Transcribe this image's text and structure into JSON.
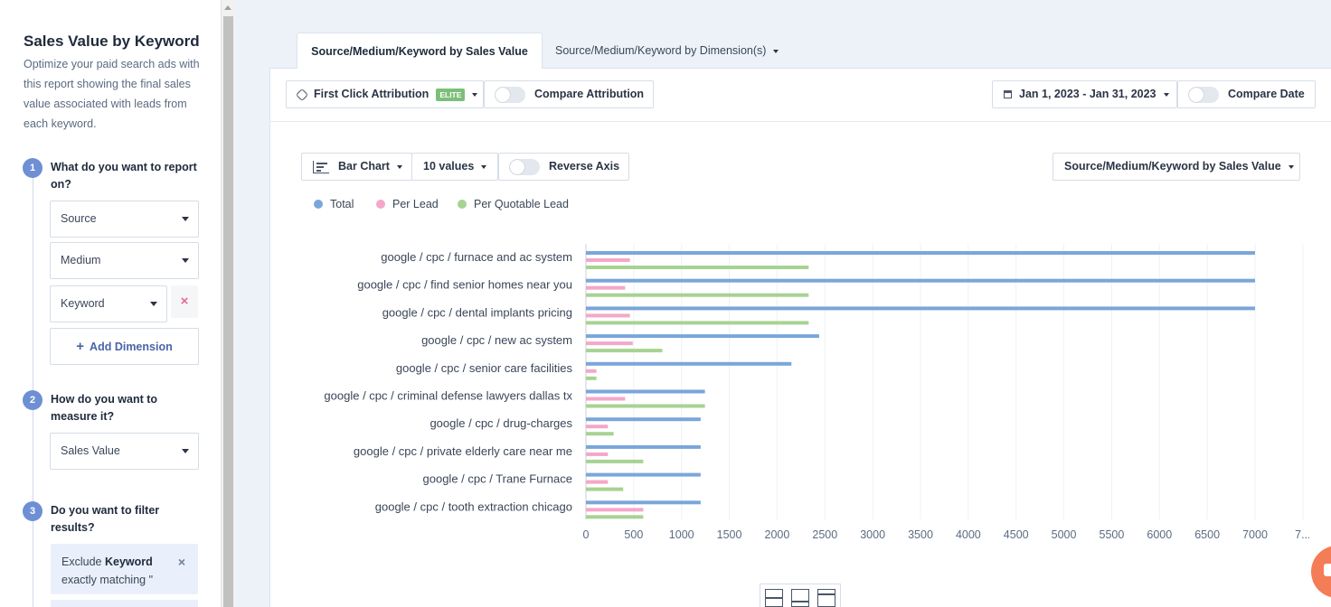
{
  "sidebar": {
    "title": "Sales Value by Keyword",
    "description": "Optimize your paid search ads with this report showing the final sales value associated with leads from each keyword.",
    "steps": [
      {
        "number": "1",
        "question": "What do you want to report on?"
      },
      {
        "number": "2",
        "question": "How do you want to measure it?"
      },
      {
        "number": "3",
        "question": "Do you want to filter results?"
      }
    ],
    "dimensions": [
      "Source",
      "Medium",
      "Keyword"
    ],
    "add_dimension_label": "Add Dimension",
    "measure": "Sales Value",
    "filter": {
      "prefix": "Exclude",
      "field": "Keyword",
      "suffix": "exactly matching \""
    }
  },
  "tabs": [
    {
      "label": "Source/Medium/Keyword by Sales Value",
      "active": true
    },
    {
      "label": "Source/Medium/Keyword by Dimension(s)",
      "active": false
    }
  ],
  "toolbar": {
    "attribution": "First Click Attribution",
    "attribution_badge": "ELITE",
    "compare_attribution": "Compare Attribution",
    "date_range": "Jan 1, 2023 - Jan 31, 2023",
    "compare_date": "Compare Date"
  },
  "chart_controls": {
    "chart_type": "Bar Chart",
    "values_count": "10 values",
    "reverse_axis": "Reverse Axis",
    "report_select": "Source/Medium/Keyword by Sales Value"
  },
  "chart_data": {
    "type": "bar",
    "orientation": "horizontal",
    "categories": [
      "google / cpc / furnace and ac system",
      "google / cpc / find senior homes near you",
      "google / cpc / dental implants pricing",
      "google / cpc / new ac system",
      "google / cpc / senior care facilities",
      "google / cpc / criminal defense lawyers dallas tx",
      "google / cpc / drug-charges",
      "google / cpc / private elderly care near me",
      "google / cpc / Trane Furnace",
      "google / cpc / tooth extraction chicago"
    ],
    "series": [
      {
        "name": "Total",
        "color": "#7aa6da",
        "values": [
          7000,
          7000,
          7000,
          2440,
          2150,
          1245,
          1200,
          1200,
          1200,
          1200
        ]
      },
      {
        "name": "Per Lead",
        "color": "#f4a7c9",
        "values": [
          460,
          410,
          460,
          490,
          110,
          410,
          230,
          230,
          230,
          600
        ]
      },
      {
        "name": "Per Quotable Lead",
        "color": "#a7d392",
        "values": [
          2330,
          2330,
          2330,
          800,
          110,
          1245,
          290,
          600,
          390,
          600
        ]
      }
    ],
    "x_ticks": [
      "0",
      "500",
      "1000",
      "1500",
      "2000",
      "2500",
      "3000",
      "3500",
      "4000",
      "4500",
      "5000",
      "5500",
      "6000",
      "6500",
      "7000",
      "7..."
    ],
    "xlim": [
      0,
      7500
    ],
    "grid": true,
    "legend_position": "top-left"
  }
}
